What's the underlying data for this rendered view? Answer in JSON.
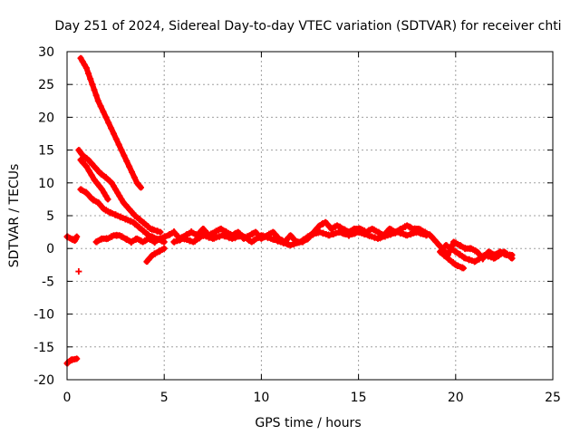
{
  "chart_data": {
    "type": "scatter",
    "title": "Day 251 of 2024, Sidereal Day-to-day VTEC variation (SDTVAR) for receiver chti",
    "xlabel": "GPS time / hours",
    "ylabel": "SDTVAR / TECUs",
    "xlim": [
      0,
      25
    ],
    "ylim": [
      -20,
      30
    ],
    "xticks": [
      0,
      5,
      10,
      15,
      20,
      25
    ],
    "yticks": [
      30,
      25,
      20,
      15,
      10,
      5,
      0,
      -5,
      -10,
      -15,
      -20
    ],
    "grid": true,
    "marker": "plus",
    "series": [
      {
        "name": "SDTVAR",
        "color": "#ff0000",
        "tracks": [
          [
            [
              0.0,
              -17.5
            ],
            [
              0.2,
              -17.0
            ],
            [
              0.5,
              -16.8
            ]
          ],
          [
            [
              0.6,
              -3.5
            ]
          ],
          [
            [
              0.0,
              1.8
            ],
            [
              0.2,
              1.5
            ],
            [
              0.4,
              1.2
            ],
            [
              0.5,
              1.8
            ]
          ],
          [
            [
              0.7,
              29.0
            ],
            [
              1.0,
              27.5
            ],
            [
              1.3,
              25.0
            ],
            [
              1.6,
              22.5
            ],
            [
              2.0,
              20.0
            ],
            [
              2.4,
              17.5
            ],
            [
              2.8,
              15.0
            ],
            [
              3.2,
              12.5
            ],
            [
              3.6,
              10.0
            ],
            [
              3.8,
              9.3
            ]
          ],
          [
            [
              0.6,
              15.0
            ],
            [
              0.8,
              14.2
            ],
            [
              1.1,
              13.5
            ],
            [
              1.4,
              12.5
            ],
            [
              1.7,
              11.5
            ],
            [
              2.0,
              10.8
            ],
            [
              2.3,
              10.0
            ],
            [
              2.6,
              8.5
            ],
            [
              2.9,
              7.0
            ],
            [
              3.2,
              6.0
            ],
            [
              3.5,
              5.0
            ],
            [
              3.9,
              4.0
            ],
            [
              4.3,
              3.0
            ],
            [
              4.8,
              2.5
            ]
          ],
          [
            [
              0.7,
              13.5
            ],
            [
              1.0,
              12.5
            ],
            [
              1.4,
              10.5
            ],
            [
              1.8,
              9.0
            ],
            [
              2.1,
              7.5
            ]
          ],
          [
            [
              0.7,
              9.0
            ],
            [
              1.0,
              8.5
            ],
            [
              1.3,
              7.5
            ],
            [
              1.6,
              7.0
            ],
            [
              1.9,
              6.0
            ],
            [
              2.2,
              5.5
            ],
            [
              2.6,
              5.0
            ],
            [
              3.0,
              4.5
            ],
            [
              3.4,
              4.0
            ],
            [
              3.8,
              3.0
            ],
            [
              4.2,
              2.0
            ],
            [
              4.6,
              1.5
            ],
            [
              5.0,
              1.0
            ]
          ],
          [
            [
              1.5,
              1.0
            ],
            [
              1.8,
              1.5
            ],
            [
              2.1,
              1.5
            ],
            [
              2.4,
              2.0
            ],
            [
              2.7,
              2.0
            ],
            [
              3.0,
              1.5
            ],
            [
              3.3,
              1.0
            ],
            [
              3.6,
              1.5
            ],
            [
              3.9,
              1.0
            ],
            [
              4.2,
              1.5
            ],
            [
              4.5,
              1.0
            ],
            [
              4.8,
              1.5
            ],
            [
              5.2,
              2.0
            ],
            [
              5.5,
              2.5
            ],
            [
              5.8,
              1.5
            ],
            [
              6.1,
              2.0
            ],
            [
              6.4,
              2.5
            ],
            [
              6.7,
              2.0
            ],
            [
              7.0,
              3.0
            ],
            [
              7.3,
              2.0
            ],
            [
              7.6,
              2.5
            ],
            [
              7.9,
              3.0
            ],
            [
              8.2,
              2.5
            ],
            [
              8.5,
              2.0
            ],
            [
              8.8,
              2.5
            ],
            [
              9.1,
              1.5
            ],
            [
              9.4,
              2.0
            ],
            [
              9.7,
              2.5
            ],
            [
              10.0,
              1.5
            ],
            [
              10.3,
              2.0
            ],
            [
              10.6,
              2.5
            ],
            [
              10.9,
              1.5
            ],
            [
              11.2,
              1.0
            ],
            [
              11.5,
              2.0
            ],
            [
              11.8,
              1.0
            ],
            [
              12.1,
              1.0
            ],
            [
              12.4,
              1.5
            ],
            [
              12.7,
              2.5
            ],
            [
              13.0,
              3.5
            ],
            [
              13.3,
              4.0
            ],
            [
              13.6,
              3.0
            ],
            [
              13.9,
              3.5
            ],
            [
              14.2,
              3.0
            ],
            [
              14.5,
              2.5
            ],
            [
              14.8,
              3.0
            ],
            [
              15.1,
              3.0
            ],
            [
              15.4,
              2.5
            ],
            [
              15.7,
              3.0
            ],
            [
              16.0,
              2.5
            ],
            [
              16.3,
              2.0
            ],
            [
              16.6,
              3.0
            ],
            [
              16.9,
              2.5
            ],
            [
              17.2,
              3.0
            ],
            [
              17.5,
              3.5
            ],
            [
              17.8,
              3.0
            ],
            [
              18.1,
              3.0
            ],
            [
              18.4,
              2.5
            ],
            [
              18.7,
              2.0
            ],
            [
              19.0,
              1.0
            ],
            [
              19.3,
              0.0
            ],
            [
              19.6,
              -1.0
            ],
            [
              19.9,
              1.0
            ],
            [
              20.2,
              0.5
            ],
            [
              20.5,
              0.0
            ],
            [
              20.8,
              0.0
            ],
            [
              21.1,
              -0.5
            ],
            [
              21.4,
              -1.5
            ],
            [
              21.7,
              -0.5
            ],
            [
              22.0,
              -1.0
            ],
            [
              22.3,
              -0.5
            ],
            [
              22.6,
              -1.0
            ],
            [
              22.9,
              -1.0
            ]
          ],
          [
            [
              4.1,
              -2.0
            ],
            [
              4.4,
              -1.0
            ],
            [
              4.7,
              -0.5
            ],
            [
              5.0,
              0.0
            ]
          ],
          [
            [
              19.2,
              -0.5
            ],
            [
              19.6,
              -1.5
            ],
            [
              20.0,
              -2.5
            ],
            [
              20.4,
              -3.0
            ]
          ],
          [
            [
              19.5,
              0.5
            ],
            [
              20.0,
              -0.5
            ],
            [
              20.5,
              -1.5
            ],
            [
              21.0,
              -2.0
            ],
            [
              21.5,
              -1.0
            ],
            [
              22.0,
              -1.5
            ],
            [
              22.5,
              -0.5
            ],
            [
              22.9,
              -1.5
            ]
          ],
          [
            [
              5.5,
              1.0
            ],
            [
              6.0,
              1.5
            ],
            [
              6.5,
              1.0
            ],
            [
              7.0,
              2.0
            ],
            [
              7.5,
              1.5
            ],
            [
              8.0,
              2.0
            ],
            [
              8.5,
              1.5
            ],
            [
              9.0,
              2.0
            ],
            [
              9.5,
              1.0
            ],
            [
              10.0,
              2.0
            ],
            [
              10.5,
              1.5
            ],
            [
              11.0,
              1.0
            ],
            [
              11.5,
              0.5
            ],
            [
              12.0,
              1.0
            ],
            [
              12.5,
              2.0
            ],
            [
              13.0,
              2.5
            ],
            [
              13.5,
              2.0
            ],
            [
              14.0,
              2.5
            ],
            [
              14.5,
              2.0
            ],
            [
              15.0,
              2.5
            ],
            [
              15.5,
              2.0
            ],
            [
              16.0,
              1.5
            ],
            [
              16.5,
              2.0
            ],
            [
              17.0,
              2.5
            ],
            [
              17.5,
              2.0
            ],
            [
              18.0,
              2.5
            ],
            [
              18.5,
              2.0
            ]
          ]
        ]
      }
    ]
  }
}
